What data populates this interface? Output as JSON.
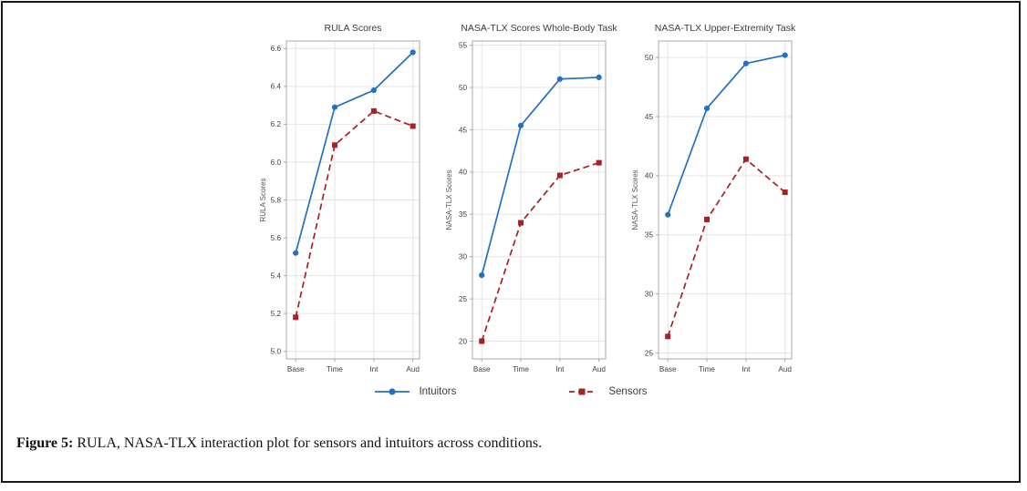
{
  "caption": {
    "label": "Figure 5:",
    "text": " RULA, NASA-TLX interaction plot for sensors and intuitors across conditions."
  },
  "legend": {
    "items": [
      {
        "label": "Intuitors",
        "color": "#2470C2",
        "marker": "circle",
        "line": "solid"
      },
      {
        "label": "Sensors",
        "color": "#A52125",
        "marker": "square",
        "line": "dashed"
      }
    ]
  },
  "chart_data": [
    {
      "type": "line",
      "title": "RULA Scores",
      "ylabel": "RULA Scores",
      "categories": [
        "Base",
        "Time",
        "Int",
        "Aud"
      ],
      "ylim": [
        4.96,
        6.64
      ],
      "yticks": [
        5.0,
        5.2,
        5.4,
        5.6,
        5.8,
        6.0,
        6.2,
        6.4,
        6.6
      ],
      "ytick_decimals": 1,
      "grid": true,
      "legend_position": "bottom",
      "series": [
        {
          "name": "Intuitors",
          "values": [
            5.52,
            6.29,
            6.38,
            6.58
          ]
        },
        {
          "name": "Sensors",
          "values": [
            5.18,
            6.09,
            6.27,
            6.19
          ]
        }
      ]
    },
    {
      "type": "line",
      "title": "NASA-TLX Scores Whole-Body Task",
      "ylabel": "NASA-TLX Scores",
      "categories": [
        "Base",
        "Time",
        "Int",
        "Aud"
      ],
      "ylim": [
        17.9,
        55.5
      ],
      "yticks": [
        20,
        25,
        30,
        35,
        40,
        45,
        50,
        55
      ],
      "ytick_decimals": 0,
      "grid": true,
      "legend_position": "bottom",
      "series": [
        {
          "name": "Intuitors",
          "values": [
            27.8,
            45.5,
            51.0,
            51.2
          ]
        },
        {
          "name": "Sensors",
          "values": [
            20.0,
            34.0,
            39.6,
            41.1
          ]
        }
      ]
    },
    {
      "type": "line",
      "title": "NASA-TLX Upper-Extremity Task",
      "ylabel": "NASA-TLX Scores",
      "categories": [
        "Base",
        "Time",
        "Int",
        "Aud"
      ],
      "ylim": [
        24.5,
        51.4
      ],
      "yticks": [
        25,
        30,
        35,
        40,
        45,
        50
      ],
      "ytick_decimals": 0,
      "grid": true,
      "legend_position": "bottom",
      "series": [
        {
          "name": "Intuitors",
          "values": [
            36.7,
            45.7,
            49.5,
            50.2
          ]
        },
        {
          "name": "Sensors",
          "values": [
            26.4,
            36.3,
            41.4,
            38.6
          ]
        }
      ]
    }
  ]
}
